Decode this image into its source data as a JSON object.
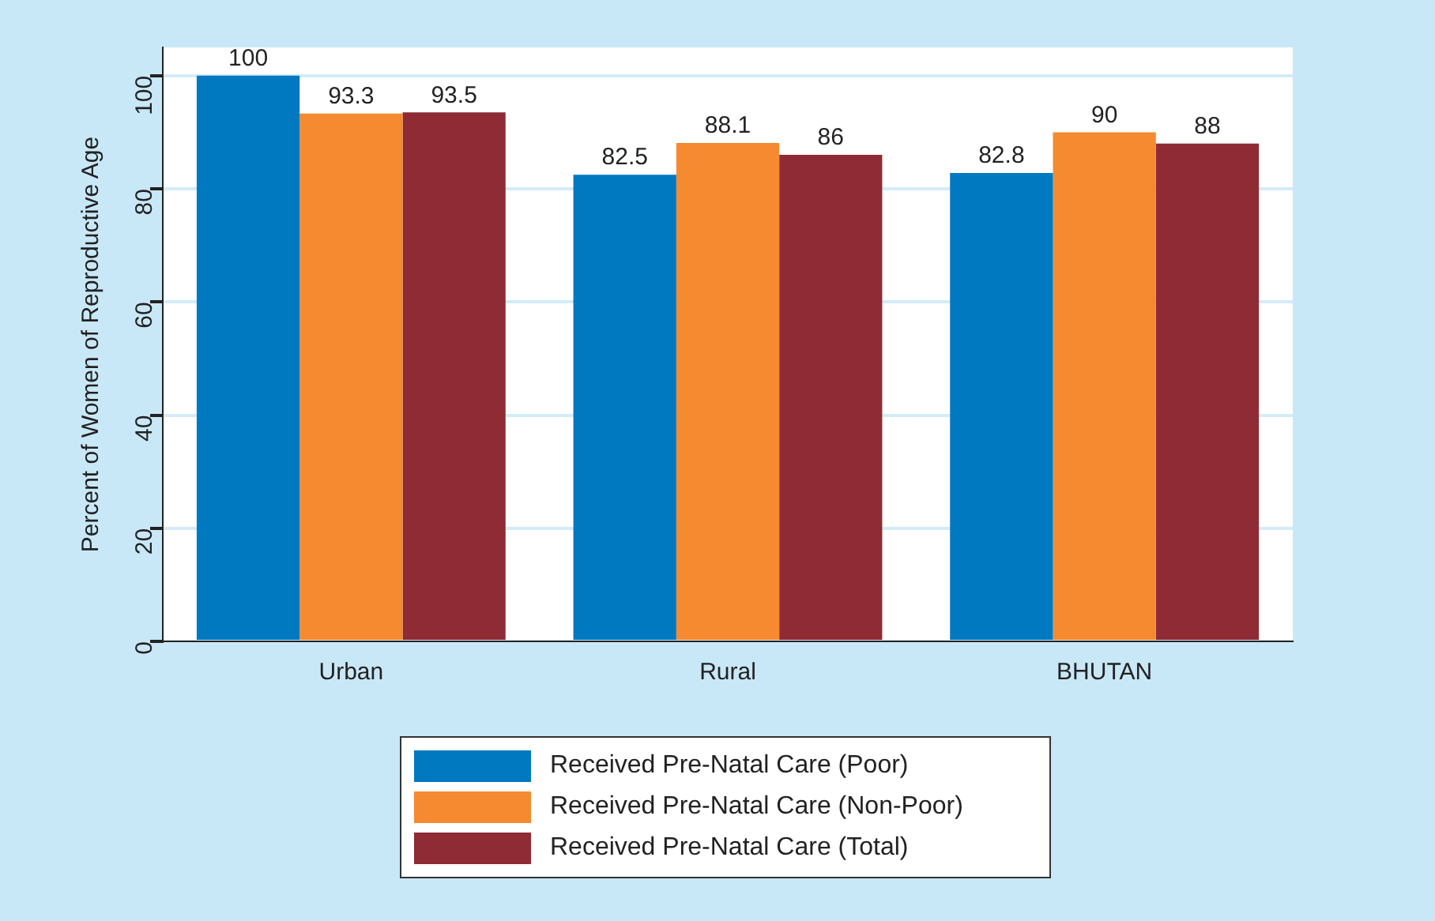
{
  "chart_data": {
    "type": "bar",
    "ylabel": "Percent of Women of Reproductive Age",
    "categories": [
      "Urban",
      "Rural",
      "BHUTAN"
    ],
    "series": [
      {
        "name": "Received Pre-Natal Care (Poor)",
        "color": "#0079c1",
        "values": [
          100,
          82.5,
          82.8
        ]
      },
      {
        "name": "Received Pre-Natal Care (Non-Poor)",
        "color": "#f58a30",
        "values": [
          93.3,
          88.1,
          90
        ]
      },
      {
        "name": "Received Pre-Natal Care (Total)",
        "color": "#8e2b34",
        "values": [
          93.5,
          86,
          88
        ]
      }
    ],
    "ylim": [
      0,
      105
    ],
    "yticks": [
      0,
      20,
      40,
      60,
      80,
      100
    ],
    "grid": "y",
    "legend": "bottom",
    "data_labels": true
  }
}
